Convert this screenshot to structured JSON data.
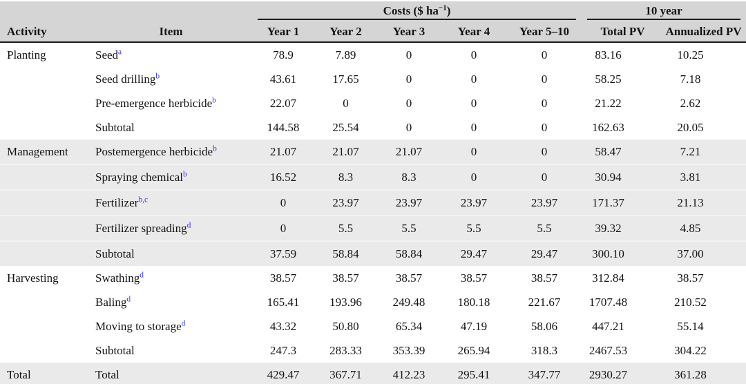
{
  "colors": {
    "header_bg": "#d5d5d5",
    "band_bg": "#eaeaea",
    "rule_dark": "#1a1a1a",
    "rule_bottom": "#c9c9c9",
    "footnote_blue": "#3434f2",
    "text": "#131313"
  },
  "table": {
    "header_groups": {
      "costs_prefix": "Costs ($ ha",
      "costs_sup": "−1",
      "costs_suffix": ")",
      "ten_year": "10 year"
    },
    "columns": [
      "Activity",
      "Item",
      "Year 1",
      "Year 2",
      "Year 3",
      "Year 4",
      "Year 5–10",
      "Total PV",
      "Annualized PV"
    ],
    "sections": [
      {
        "activity": "Planting",
        "shaded": false,
        "rows": [
          {
            "item": "Seed",
            "sup": "a",
            "values": [
              "78.9",
              "7.89",
              "0",
              "0",
              "0",
              "83.16",
              "10.25"
            ]
          },
          {
            "item": "Seed drilling",
            "sup": "b",
            "values": [
              "43.61",
              "17.65",
              "0",
              "0",
              "0",
              "58.25",
              "7.18"
            ]
          },
          {
            "item": "Pre-emergence herbicide",
            "sup": "b",
            "values": [
              "22.07",
              "0",
              "0",
              "0",
              "0",
              "21.22",
              "2.62"
            ]
          },
          {
            "item": "Subtotal",
            "sup": "",
            "values": [
              "144.58",
              "25.54",
              "0",
              "0",
              "0",
              "162.63",
              "20.05"
            ]
          }
        ]
      },
      {
        "activity": "Management",
        "shaded": true,
        "rows": [
          {
            "item": "Postemergence herbicide",
            "sup": "b",
            "values": [
              "21.07",
              "21.07",
              "21.07",
              "0",
              "0",
              "58.47",
              "7.21"
            ]
          },
          {
            "item": "Spraying chemical",
            "sup": "b",
            "values": [
              "16.52",
              "8.3",
              "8.3",
              "0",
              "0",
              "30.94",
              "3.81"
            ]
          },
          {
            "item": "Fertilizer",
            "sup": "b,c",
            "values": [
              "0",
              "23.97",
              "23.97",
              "23.97",
              "23.97",
              "171.37",
              "21.13"
            ]
          },
          {
            "item": "Fertilizer spreading",
            "sup": "d",
            "values": [
              "0",
              "5.5",
              "5.5",
              "5.5",
              "5.5",
              "39.32",
              "4.85"
            ]
          },
          {
            "item": "Subtotal",
            "sup": "",
            "values": [
              "37.59",
              "58.84",
              "58.84",
              "29.47",
              "29.47",
              "300.10",
              "37.00"
            ]
          }
        ]
      },
      {
        "activity": "Harvesting",
        "shaded": false,
        "rows": [
          {
            "item": "Swathing",
            "sup": "d",
            "values": [
              "38.57",
              "38.57",
              "38.57",
              "38.57",
              "38.57",
              "312.84",
              "38.57"
            ]
          },
          {
            "item": "Baling",
            "sup": "d",
            "values": [
              "165.41",
              "193.96",
              "249.48",
              "180.18",
              "221.67",
              "1707.48",
              "210.52"
            ]
          },
          {
            "item": "Moving to storage",
            "sup": "d",
            "values": [
              "43.32",
              "50.80",
              "65.34",
              "47.19",
              "58.06",
              "447.21",
              "55.14"
            ]
          },
          {
            "item": "Subtotal",
            "sup": "",
            "values": [
              "247.3",
              "283.33",
              "353.39",
              "265.94",
              "318.3",
              "2467.53",
              "304.22"
            ]
          }
        ]
      },
      {
        "activity": "Total",
        "shaded": true,
        "is_total": true,
        "rows": [
          {
            "item": "Total",
            "sup": "",
            "values": [
              "429.47",
              "367.71",
              "412.23",
              "295.41",
              "347.77",
              "2930.27",
              "361.28"
            ]
          }
        ]
      }
    ]
  }
}
